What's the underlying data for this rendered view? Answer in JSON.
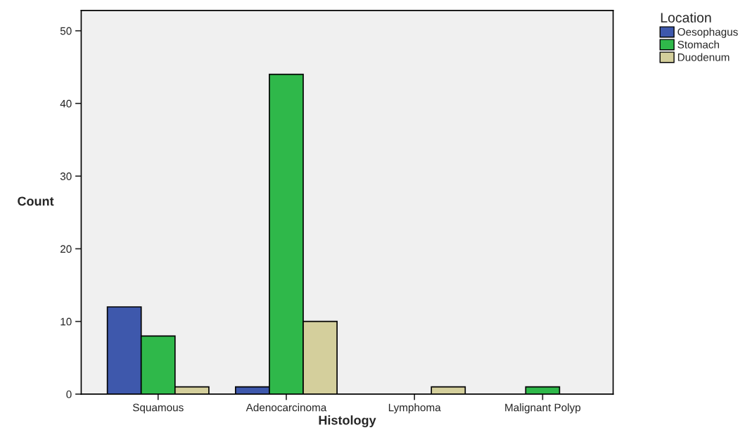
{
  "chart_data": {
    "type": "bar",
    "xlabel": "Histology",
    "ylabel": "Count",
    "legend_title": "Location",
    "categories": [
      "Squamous",
      "Adenocarcinoma",
      "Lymphoma",
      "Malignant Polyp"
    ],
    "series": [
      {
        "name": "Oesophagus",
        "color": "#3e58ac",
        "values": [
          12,
          1,
          0,
          0
        ]
      },
      {
        "name": "Stomach",
        "color": "#2fb84a",
        "values": [
          8,
          44,
          0,
          1
        ]
      },
      {
        "name": "Duodenum",
        "color": "#d4cf9c",
        "values": [
          1,
          10,
          1,
          0
        ]
      }
    ],
    "ylim": [
      0,
      52.8
    ],
    "yticks": [
      0,
      10,
      20,
      30,
      40,
      50
    ],
    "grid": false,
    "legend": "top right"
  }
}
